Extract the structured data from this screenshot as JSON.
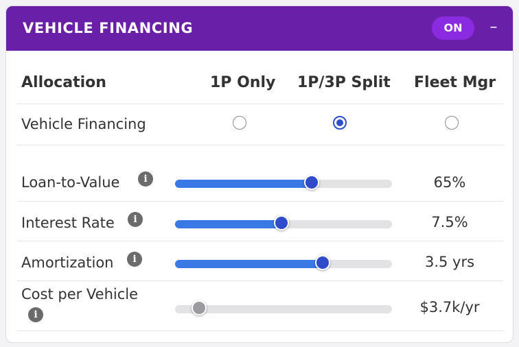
{
  "header": {
    "title": "VEHICLE FINANCING",
    "toggle_label": "ON",
    "collapse_label": "–"
  },
  "colors": {
    "header_bg": "#6a1fa8",
    "toggle_bg": "#8a2be2",
    "accent": "#2e4fd1",
    "slider_fill": "#3a78e6",
    "disabled_thumb": "#9a9a9f"
  },
  "allocation": {
    "header_label": "Allocation",
    "columns": [
      "1P Only",
      "1P/3P Split",
      "Fleet Mgr"
    ],
    "row_label": "Vehicle Financing",
    "selected": "1P/3P Split"
  },
  "sliders": [
    {
      "label": "Loan-to-Value",
      "value_text": "65%",
      "fraction": 0.63,
      "icon": "info-icon"
    },
    {
      "label": "Interest Rate",
      "value_text": "7.5%",
      "fraction": 0.49,
      "icon": "info-icon"
    },
    {
      "label": "Amortization",
      "value_text": "3.5 yrs",
      "fraction": 0.68,
      "icon": "info-icon"
    },
    {
      "label": "Cost per Vehicle",
      "value_text": "$3.7k/yr",
      "fraction": 0.11,
      "icon": "info-icon",
      "disabled": true
    }
  ]
}
